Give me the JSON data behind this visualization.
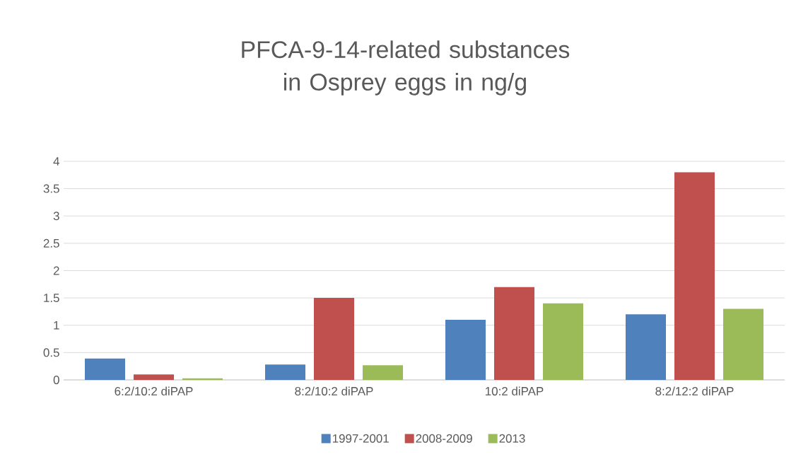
{
  "chart_data": {
    "type": "bar",
    "title": "PFCA-9-14-related substances in Osprey eggs in ng/g",
    "categories": [
      "6:2/10:2 diPAP",
      "8:2/10:2 diPAP",
      "10:2 diPAP",
      "8:2/12:2 diPAP"
    ],
    "series": [
      {
        "name": "1997-2001",
        "color": "#4f81bd",
        "values": [
          0.39,
          0.28,
          1.1,
          1.2
        ]
      },
      {
        "name": "2008-2009",
        "color": "#c0504d",
        "values": [
          0.1,
          1.5,
          1.7,
          3.8
        ]
      },
      {
        "name": "2013",
        "color": "#9bbb59",
        "values": [
          0.03,
          0.27,
          1.4,
          1.3
        ]
      }
    ],
    "ylim": [
      0,
      4
    ],
    "yticks": [
      0,
      0.5,
      1,
      1.5,
      2,
      2.5,
      3,
      3.5,
      4
    ],
    "grid": "y",
    "legend": "bottom"
  }
}
